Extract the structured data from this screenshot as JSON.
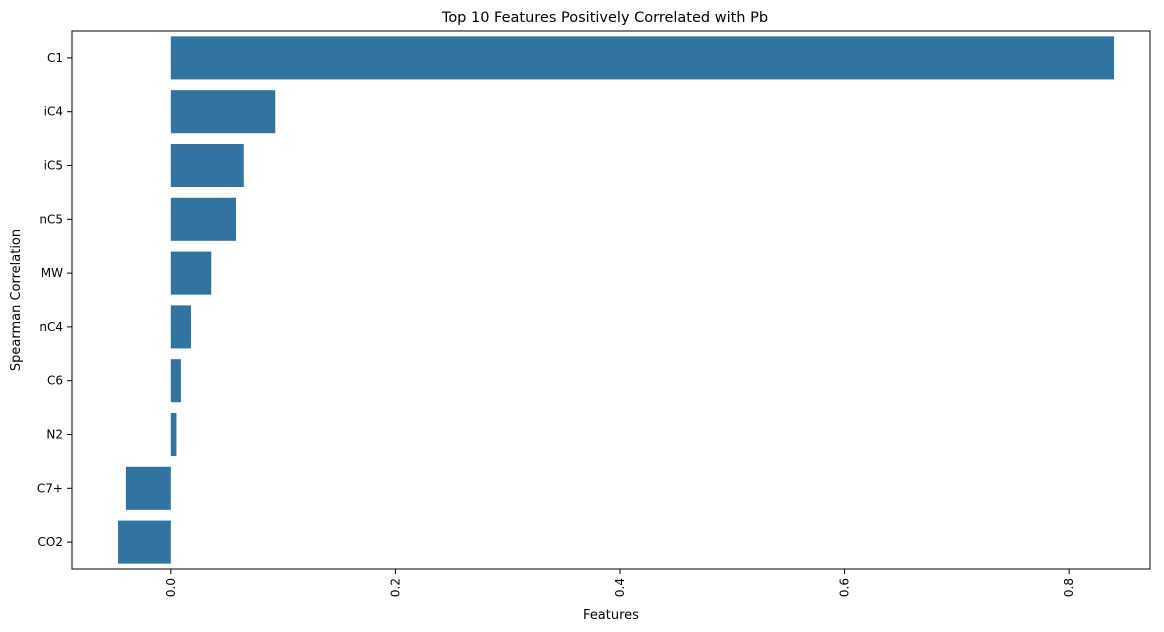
{
  "chart_data": {
    "type": "bar",
    "orientation": "horizontal",
    "title": "Top 10 Features Positively Correlated with Pb",
    "xlabel": "Features",
    "ylabel": "Spearman Correlation",
    "categories": [
      "C1",
      "iC4",
      "iC5",
      "nC5",
      "MW",
      "nC4",
      "C6",
      "N2",
      "C7+",
      "CO2"
    ],
    "values": [
      0.84,
      0.093,
      0.065,
      0.058,
      0.036,
      0.018,
      0.009,
      0.005,
      -0.04,
      -0.047
    ],
    "xlim": [
      -0.088,
      0.872
    ],
    "xticks": [
      0.0,
      0.2,
      0.4,
      0.6,
      0.8
    ],
    "xtick_labels": [
      "0.0",
      "0.2",
      "0.4",
      "0.6",
      "0.8"
    ],
    "xtick_rotation": "vertical",
    "bar_color": "#3274a1",
    "grid": false,
    "legend": "none"
  }
}
